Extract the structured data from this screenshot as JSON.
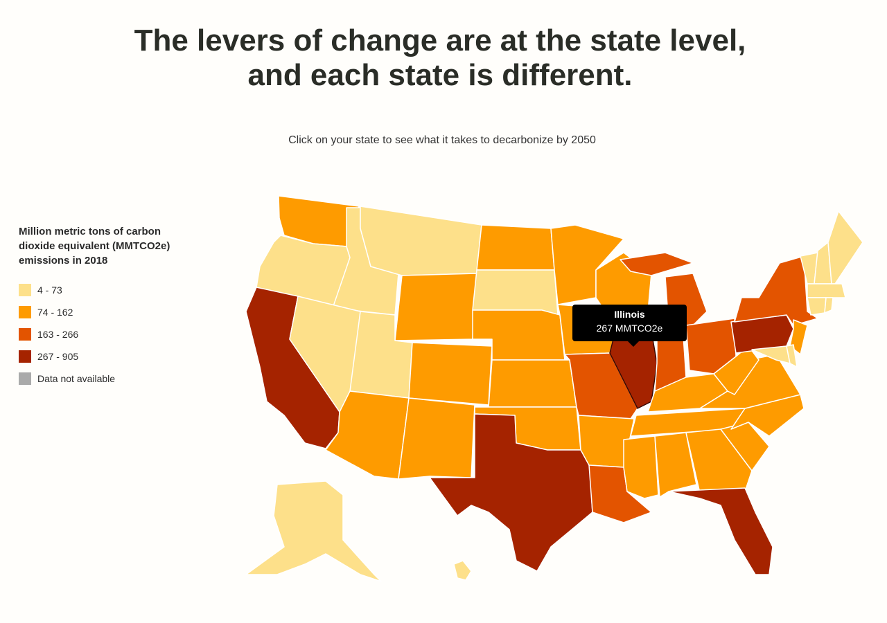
{
  "title_line1": "The levers of change are at the state level,",
  "title_line2": "and each state is different.",
  "subtitle": "Click on your state to see what it takes to decarbonize by 2050",
  "legend": {
    "title": "Million metric tons of carbon dioxide equivalent (MMTCO2e) emissions in 2018",
    "items": [
      {
        "label": "4 - 73",
        "color": "#fde08a"
      },
      {
        "label": "74 - 162",
        "color": "#fe9b00"
      },
      {
        "label": "163 - 266",
        "color": "#e35400"
      },
      {
        "label": "267 - 905",
        "color": "#a52300"
      },
      {
        "label": "Data not available",
        "color": "#aaaaaa"
      }
    ]
  },
  "tooltip": {
    "state": "Illinois",
    "value": "267 MMTCO2e"
  },
  "states": {
    "WA": 1,
    "OR": 0,
    "CA": 3,
    "ID": 0,
    "NV": 0,
    "MT": 0,
    "WY": 1,
    "UT": 0,
    "AZ": 1,
    "CO": 1,
    "NM": 1,
    "ND": 1,
    "SD": 0,
    "NE": 1,
    "KS": 1,
    "OK": 1,
    "TX": 3,
    "MN": 1,
    "IA": 1,
    "MO": 2,
    "AR": 1,
    "LA": 2,
    "WI": 1,
    "IL": 3,
    "MI": 2,
    "IN": 2,
    "OH": 2,
    "KY": 1,
    "TN": 1,
    "MS": 1,
    "AL": 1,
    "GA": 1,
    "FL": 3,
    "SC": 1,
    "NC": 1,
    "VA": 1,
    "WV": 1,
    "PA": 3,
    "NY": 2,
    "NJ": 1,
    "MD": 0,
    "DE": 0,
    "VT": 0,
    "NH": 0,
    "ME": 0,
    "MA": 0,
    "CT": 0,
    "RI": 0,
    "AK": 0,
    "HI": 0
  }
}
